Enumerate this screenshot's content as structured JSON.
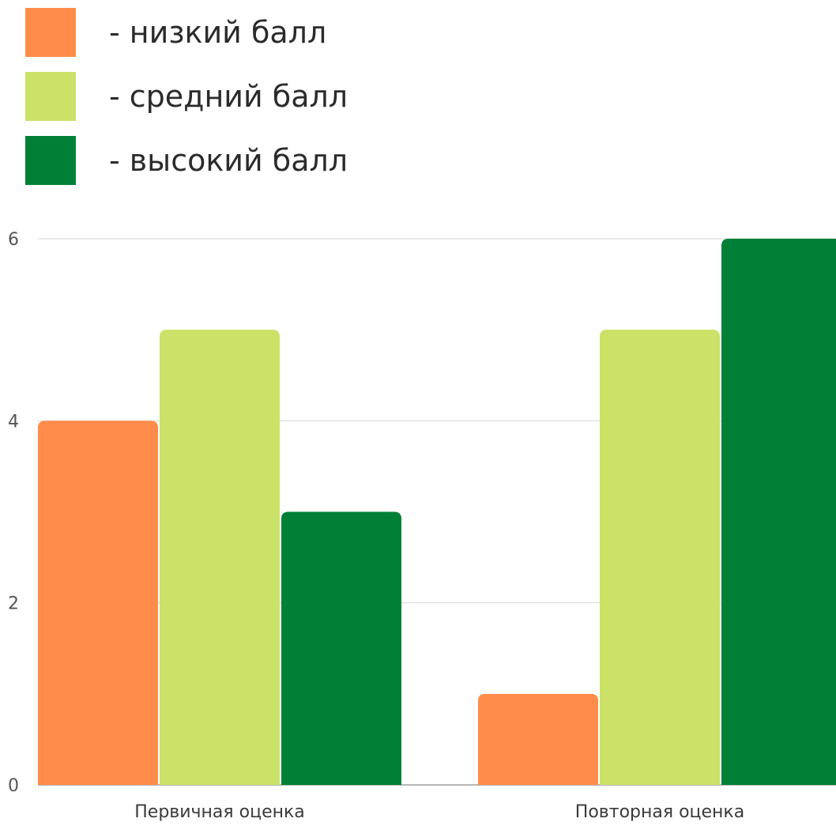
{
  "chart_data": {
    "type": "bar",
    "categories": [
      "Первичная оценка",
      "Повторная оценка"
    ],
    "series": [
      {
        "name": "- низкий балл",
        "color": "#ff8c4a",
        "values": [
          4,
          1
        ]
      },
      {
        "name": "- средний балл",
        "color": "#cbe168",
        "values": [
          5,
          5
        ]
      },
      {
        "name": "- высокий балл",
        "color": "#008037",
        "values": [
          3,
          6
        ]
      }
    ],
    "yticks": [
      "0",
      "2",
      "4",
      "6"
    ],
    "ylim": [
      0,
      6
    ],
    "grid": true,
    "legend_position": "top-left"
  }
}
